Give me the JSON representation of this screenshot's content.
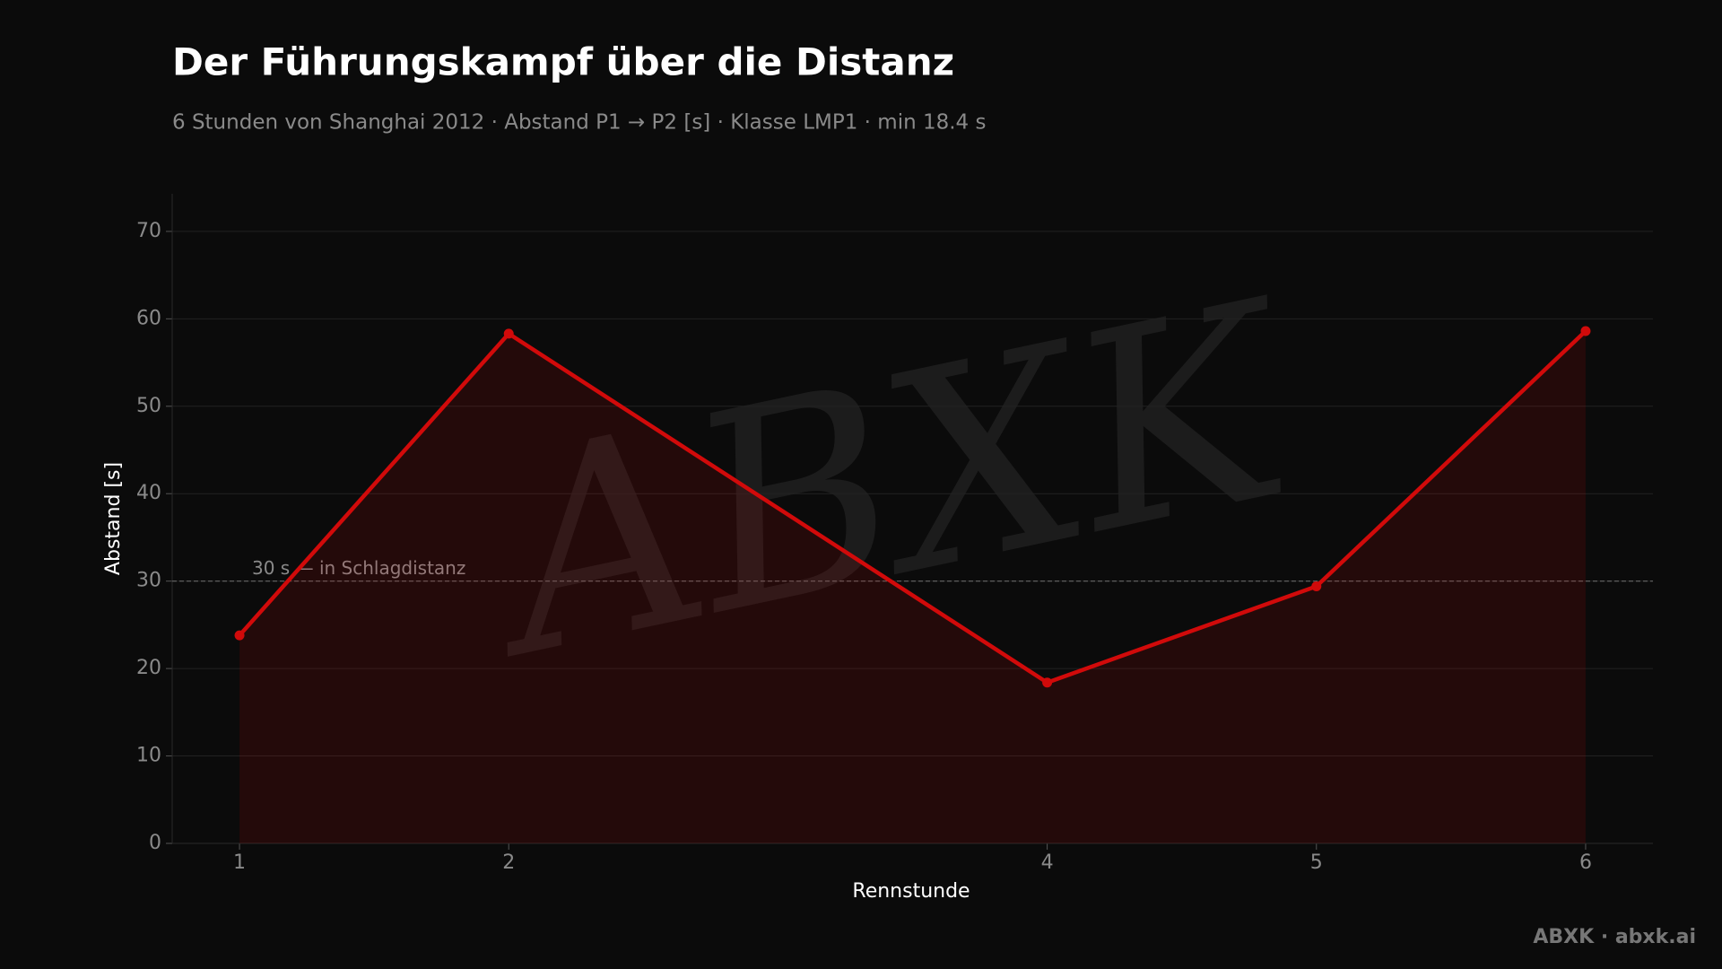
{
  "chart_data": {
    "type": "line",
    "title": "Der Führungskampf über die Distanz",
    "subtitle": "6 Stunden von Shanghai 2012 · Abstand P1 → P2 [s] · Klasse LMP1 · min 18.4 s",
    "x_label": "Rennstunde",
    "y_label": "Abstand [s]",
    "x": [
      1,
      2,
      4,
      5,
      6
    ],
    "values": [
      23.8,
      58.3,
      18.4,
      29.4,
      58.6
    ],
    "color": "#d10a0a",
    "area": true,
    "xlim": [
      0.75,
      6.25
    ],
    "xticks": [
      1,
      2,
      4,
      5,
      6
    ],
    "ylim": [
      0,
      74.3
    ],
    "yticks": [
      0,
      10,
      20,
      30,
      40,
      50,
      60,
      70
    ],
    "grid": true,
    "hlines": [
      {
        "value": 30,
        "label": "30 s — in Schlagdistanz"
      }
    ],
    "watermark": "ABXK",
    "footer": "ABXK · abxk.ai"
  }
}
